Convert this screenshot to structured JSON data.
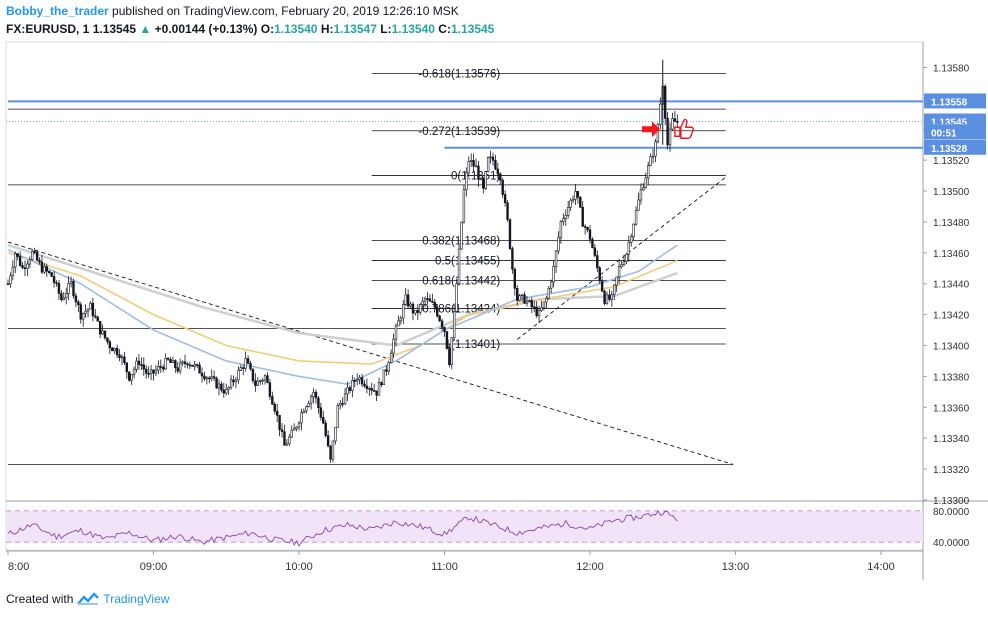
{
  "header": {
    "author": "Bobby_the_trader",
    "published": "published on TradingView.com, February 20, 2019 12:26:10 MSK",
    "symbol": "FX:EURUSD, 1",
    "last": "1.13545",
    "change": "+0.00144 (+0.13%)",
    "open_label": "O:",
    "open": "1.13540",
    "high_label": "H:",
    "high": "1.13547",
    "low_label": "L:",
    "low": "1.13540",
    "close_label": "C:",
    "close": "1.13545"
  },
  "footer": {
    "created_with": "Created with",
    "brand": "TradingView"
  },
  "colors": {
    "up": "#26a69a",
    "candle": "#131722",
    "hline": "#131722",
    "blue_level": "#5b8fe0",
    "ma_blue": "#9fbbe8",
    "ma_orange": "#f2cd7a",
    "ma_gray": "#cfcfcf",
    "rsi_line": "#8e44ad",
    "rsi_band": "#f1e4f8",
    "arrow": "#f0191e"
  },
  "chart_data": {
    "type": "candlestick",
    "x_unit": "minutes",
    "x_ticks": [
      {
        "t": 480,
        "label": "8:00"
      },
      {
        "t": 540,
        "label": "09:00"
      },
      {
        "t": 600,
        "label": "10:00"
      },
      {
        "t": 660,
        "label": "11:00"
      },
      {
        "t": 720,
        "label": "12:00"
      },
      {
        "t": 780,
        "label": "13:00"
      },
      {
        "t": 840,
        "label": "14:00"
      }
    ],
    "y_ticks": [
      "1.13580",
      "1.13560",
      "1.13540",
      "1.13520",
      "1.13500",
      "1.13480",
      "1.13460",
      "1.13440",
      "1.13420",
      "1.13400",
      "1.13380",
      "1.13360",
      "1.13340",
      "1.13320",
      "1.13300"
    ],
    "ylim": [
      1.133,
      1.1359
    ],
    "price_labels": [
      {
        "price": 1.13558,
        "label": "1.13558",
        "color": "#5b8fe0"
      },
      {
        "price": 1.13545,
        "label": "1.13545",
        "color": "#5b8fe0"
      },
      {
        "price": 1.13538,
        "label": "00:51",
        "color": "#5b8fe0"
      },
      {
        "price": 1.13528,
        "label": "1.13528",
        "color": "#5b8fe0"
      }
    ],
    "blue_levels": [
      {
        "price": 1.13558,
        "t0": 480,
        "t1": 850
      },
      {
        "price": 1.13528,
        "t0": 660,
        "t1": 850
      }
    ],
    "fib_levels": [
      {
        "ratio": "-0.618",
        "price": 1.13576,
        "label": "-0.618(1.13576)"
      },
      {
        "ratio": "-0.272",
        "price": 1.13539,
        "label": "-0.272(1.13539)"
      },
      {
        "ratio": "0",
        "price": 1.1351,
        "label": "0(1.1351)"
      },
      {
        "ratio": "0.382",
        "price": 1.13468,
        "label": "0.382(1.13468)"
      },
      {
        "ratio": "0.5",
        "price": 1.13455,
        "label": "0.5(1.13455)"
      },
      {
        "ratio": "0.618",
        "price": 1.13442,
        "label": "0.618(1.13442)"
      },
      {
        "ratio": "0.786",
        "price": 1.13424,
        "label": "0.786(1.13424)"
      },
      {
        "ratio": "1",
        "price": 1.13401,
        "label": "1(1.13401)"
      }
    ],
    "support_lines": [
      {
        "price": 1.13553,
        "t0": 480,
        "t1": 776
      },
      {
        "price": 1.13504,
        "t0": 480,
        "t1": 776
      },
      {
        "price": 1.13411,
        "t0": 480,
        "t1": 776
      },
      {
        "price": 1.13323,
        "t0": 480,
        "t1": 779
      }
    ],
    "trendlines": [
      {
        "from": [
          480,
          1.13467
        ],
        "to": [
          779,
          1.13323
        ],
        "dashed": true
      },
      {
        "from": [
          690,
          1.13404
        ],
        "to": [
          776,
          1.13509
        ],
        "dashed": true
      }
    ],
    "close_series": [
      [
        480,
        1.1344
      ],
      [
        483,
        1.1346
      ],
      [
        486,
        1.1345
      ],
      [
        490,
        1.1346
      ],
      [
        494,
        1.1345
      ],
      [
        498,
        1.13445
      ],
      [
        502,
        1.1343
      ],
      [
        506,
        1.1344
      ],
      [
        510,
        1.1342
      ],
      [
        514,
        1.13425
      ],
      [
        518,
        1.1341
      ],
      [
        522,
        1.134
      ],
      [
        526,
        1.13395
      ],
      [
        530,
        1.1338
      ],
      [
        534,
        1.1339
      ],
      [
        538,
        1.1338
      ],
      [
        542,
        1.13385
      ],
      [
        546,
        1.1339
      ],
      [
        550,
        1.13385
      ],
      [
        554,
        1.1339
      ],
      [
        558,
        1.13385
      ],
      [
        562,
        1.1338
      ],
      [
        566,
        1.13375
      ],
      [
        570,
        1.1337
      ],
      [
        574,
        1.1338
      ],
      [
        578,
        1.1339
      ],
      [
        582,
        1.13375
      ],
      [
        586,
        1.1338
      ],
      [
        590,
        1.1336
      ],
      [
        594,
        1.13335
      ],
      [
        598,
        1.13345
      ],
      [
        602,
        1.1336
      ],
      [
        606,
        1.1337
      ],
      [
        610,
        1.1335
      ],
      [
        613,
        1.13325
      ],
      [
        616,
        1.1336
      ],
      [
        620,
        1.1337
      ],
      [
        624,
        1.1338
      ],
      [
        628,
        1.13375
      ],
      [
        632,
        1.1337
      ],
      [
        636,
        1.13385
      ],
      [
        640,
        1.1341
      ],
      [
        644,
        1.1343
      ],
      [
        648,
        1.1342
      ],
      [
        652,
        1.1343
      ],
      [
        656,
        1.13425
      ],
      [
        660,
        1.1341
      ],
      [
        662,
        1.1339
      ],
      [
        664,
        1.1342
      ],
      [
        666,
        1.1346
      ],
      [
        668,
        1.135
      ],
      [
        670,
        1.1352
      ],
      [
        673,
        1.13515
      ],
      [
        676,
        1.135
      ],
      [
        678,
        1.1352
      ],
      [
        680,
        1.1352
      ],
      [
        683,
        1.1351
      ],
      [
        686,
        1.1348
      ],
      [
        688,
        1.1345
      ],
      [
        690,
        1.1343
      ],
      [
        693,
        1.1343
      ],
      [
        696,
        1.13425
      ],
      [
        699,
        1.1342
      ],
      [
        702,
        1.1343
      ],
      [
        705,
        1.1345
      ],
      [
        708,
        1.1348
      ],
      [
        711,
        1.1349
      ],
      [
        714,
        1.135
      ],
      [
        717,
        1.1348
      ],
      [
        720,
        1.1347
      ],
      [
        723,
        1.1345
      ],
      [
        726,
        1.1343
      ],
      [
        729,
        1.1343
      ],
      [
        732,
        1.1345
      ],
      [
        735,
        1.1346
      ],
      [
        738,
        1.1348
      ],
      [
        741,
        1.135
      ],
      [
        744,
        1.13515
      ],
      [
        747,
        1.1353
      ],
      [
        750,
        1.1357
      ],
      [
        752,
        1.1353
      ],
      [
        754,
        1.13545
      ],
      [
        756,
        1.13545
      ]
    ],
    "ma_blue": [
      [
        480,
        1.13462
      ],
      [
        510,
        1.1344
      ],
      [
        540,
        1.1341
      ],
      [
        570,
        1.1339
      ],
      [
        600,
        1.1338
      ],
      [
        620,
        1.13375
      ],
      [
        640,
        1.1339
      ],
      [
        660,
        1.1341
      ],
      [
        690,
        1.1343
      ],
      [
        720,
        1.13438
      ],
      [
        740,
        1.13448
      ],
      [
        756,
        1.13465
      ]
    ],
    "ma_orange": [
      [
        480,
        1.1346
      ],
      [
        510,
        1.13445
      ],
      [
        540,
        1.1342
      ],
      [
        570,
        1.134
      ],
      [
        600,
        1.1339
      ],
      [
        630,
        1.13388
      ],
      [
        650,
        1.134
      ],
      [
        670,
        1.1342
      ],
      [
        700,
        1.1343
      ],
      [
        730,
        1.13438
      ],
      [
        756,
        1.13455
      ]
    ],
    "ma_gray": [
      [
        480,
        1.13465
      ],
      [
        520,
        1.13445
      ],
      [
        560,
        1.13425
      ],
      [
        600,
        1.13408
      ],
      [
        640,
        1.134
      ],
      [
        670,
        1.1342
      ],
      [
        700,
        1.1343
      ],
      [
        730,
        1.13432
      ],
      [
        756,
        1.13447
      ]
    ],
    "rsi": {
      "ticks": [
        {
          "value": 80,
          "label": "80.0000"
        },
        {
          "value": 40,
          "label": "40.0000"
        }
      ],
      "band": [
        40,
        80
      ],
      "ylim": [
        30,
        90
      ],
      "values": [
        [
          480,
          50
        ],
        [
          490,
          62
        ],
        [
          500,
          47
        ],
        [
          510,
          55
        ],
        [
          520,
          44
        ],
        [
          530,
          52
        ],
        [
          540,
          42
        ],
        [
          550,
          48
        ],
        [
          560,
          40
        ],
        [
          570,
          46
        ],
        [
          580,
          52
        ],
        [
          590,
          43
        ],
        [
          600,
          39
        ],
        [
          610,
          55
        ],
        [
          620,
          62
        ],
        [
          630,
          56
        ],
        [
          640,
          66
        ],
        [
          650,
          60
        ],
        [
          660,
          50
        ],
        [
          670,
          72
        ],
        [
          680,
          62
        ],
        [
          690,
          52
        ],
        [
          700,
          58
        ],
        [
          710,
          64
        ],
        [
          720,
          57
        ],
        [
          730,
          68
        ],
        [
          740,
          72
        ],
        [
          750,
          79
        ],
        [
          756,
          70
        ]
      ]
    }
  }
}
